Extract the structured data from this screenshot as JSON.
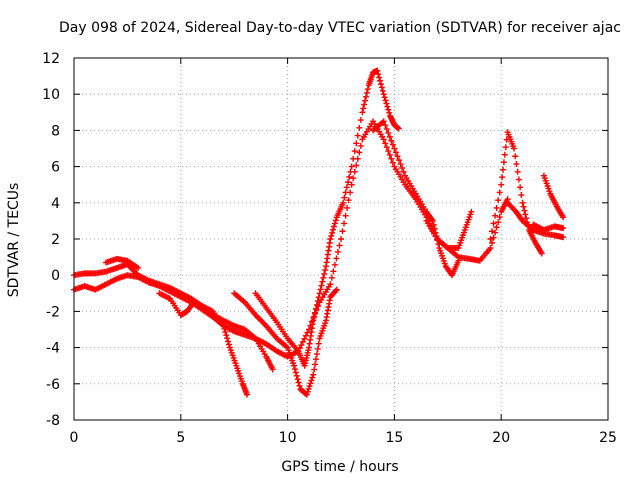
{
  "chart_data": {
    "type": "scatter",
    "title": "Day 098 of 2024, Sidereal Day-to-day VTEC variation (SDTVAR) for receiver ajac",
    "xlabel": "GPS time / hours",
    "ylabel": "SDTVAR / TECUs",
    "xlim": [
      0,
      25
    ],
    "ylim": [
      -8,
      12
    ],
    "xticks": [
      "0",
      "5",
      "10",
      "15",
      "20",
      "25"
    ],
    "yticks": [
      "-8",
      "-6",
      "-4",
      "-2",
      "0",
      "2",
      "4",
      "6",
      "8",
      "10",
      "12"
    ],
    "grid": true,
    "marker": "+",
    "series_color": "#ff0000",
    "series": [
      {
        "x": [
          0,
          0.5,
          1,
          1.5,
          2,
          2.5,
          3,
          3.5,
          4,
          4.5,
          5,
          5.5,
          6,
          6.5,
          7,
          7.5,
          8,
          8.5,
          9,
          9.5,
          10,
          10.5,
          11,
          11.5,
          12,
          12.5,
          13,
          13.5,
          14,
          14.5,
          15,
          15.5,
          16,
          16.5,
          17,
          17.5,
          18,
          18.5,
          19,
          19.5,
          20,
          20.3
        ],
        "y": [
          -0.8,
          -0.6,
          -0.8,
          -0.5,
          -0.2,
          0.0,
          -0.1,
          -0.4,
          -0.6,
          -0.9,
          -1.2,
          -1.5,
          -1.9,
          -2.3,
          -2.8,
          -3.1,
          -3.3,
          -3.5,
          -3.8,
          -4.2,
          -4.5,
          -4.2,
          -3.0,
          -1.5,
          -0.5,
          2.0,
          5.0,
          7.5,
          8.5,
          7.5,
          6.0,
          5.0,
          4.2,
          3.2,
          2.0,
          1.5,
          1.0,
          0.9,
          0.8,
          1.5,
          3.5,
          4.2
        ]
      },
      {
        "x": [
          0,
          0.5,
          1,
          1.5,
          2,
          2.5,
          3,
          3.5,
          4,
          4.5,
          5,
          5.5,
          6,
          6.5,
          7,
          7.3,
          7.6,
          7.9,
          8.1
        ],
        "y": [
          0.0,
          0.1,
          0.1,
          0.2,
          0.4,
          0.6,
          0.0,
          -0.3,
          -0.5,
          -0.7,
          -1.0,
          -1.3,
          -1.7,
          -2.0,
          -2.8,
          -4.0,
          -5.0,
          -6.0,
          -6.6
        ]
      },
      {
        "x": [
          1.5,
          2,
          2.5,
          3
        ],
        "y": [
          0.7,
          0.9,
          0.8,
          0.4
        ]
      },
      {
        "x": [
          4,
          4.5,
          5,
          5.3,
          5.6,
          6,
          6.5,
          7,
          7.5,
          8,
          8.5,
          9,
          9.3
        ],
        "y": [
          -1.0,
          -1.3,
          -2.2,
          -2.0,
          -1.5,
          -1.8,
          -2.2,
          -2.5,
          -2.8,
          -3.0,
          -3.5,
          -4.5,
          -5.2
        ]
      },
      {
        "x": [
          8.5,
          9,
          9.5,
          10,
          10.5,
          10.8,
          11,
          11.2,
          11.5,
          11.8,
          12,
          12.3,
          12.6,
          13,
          13.5,
          13.8,
          14,
          14.2,
          14.5,
          14.8,
          15,
          15.2
        ],
        "y": [
          -1.0,
          -1.8,
          -2.6,
          -3.5,
          -4.2,
          -5.0,
          -4.0,
          -2.5,
          -1.0,
          0.5,
          2.0,
          3.2,
          4.0,
          6.0,
          9.0,
          10.5,
          11.2,
          11.3,
          10.0,
          8.8,
          8.3,
          8.1
        ]
      },
      {
        "x": [
          7.5,
          8,
          8.5,
          9,
          9.5,
          10,
          10.3,
          10.6,
          10.9,
          11.2,
          11.5,
          11.8,
          12,
          12.3
        ],
        "y": [
          -1.0,
          -1.5,
          -2.2,
          -2.8,
          -3.5,
          -4.0,
          -5.0,
          -6.3,
          -6.6,
          -5.5,
          -3.5,
          -2.5,
          -1.2,
          -0.8
        ]
      },
      {
        "x": [
          14,
          14.5,
          15,
          15.5,
          16,
          16.5,
          16.8,
          17.1,
          17.4,
          17.7,
          18
        ],
        "y": [
          8.0,
          8.5,
          7.0,
          5.5,
          4.5,
          3.5,
          3.0,
          1.5,
          0.5,
          0.0,
          0.8
        ]
      },
      {
        "x": [
          16.5,
          17,
          17.5,
          18,
          18.3,
          18.6
        ],
        "y": [
          3.0,
          2.0,
          1.5,
          1.5,
          2.5,
          3.5
        ]
      },
      {
        "x": [
          19.5,
          20,
          20.3,
          20.6,
          21,
          21.3,
          21.6,
          21.9
        ],
        "y": [
          2.0,
          5.0,
          7.9,
          7.0,
          4.0,
          2.5,
          1.8,
          1.2
        ]
      },
      {
        "x": [
          20.3,
          20.7,
          21,
          21.5,
          22,
          22.5,
          22.9
        ],
        "y": [
          4.0,
          3.5,
          3.0,
          2.5,
          2.3,
          2.2,
          2.1
        ]
      },
      {
        "x": [
          21.5,
          22,
          22.5,
          22.9
        ],
        "y": [
          2.8,
          2.5,
          2.7,
          2.6
        ]
      },
      {
        "x": [
          22,
          22.3,
          22.6,
          22.9
        ],
        "y": [
          5.5,
          4.5,
          3.8,
          3.2
        ]
      }
    ]
  }
}
